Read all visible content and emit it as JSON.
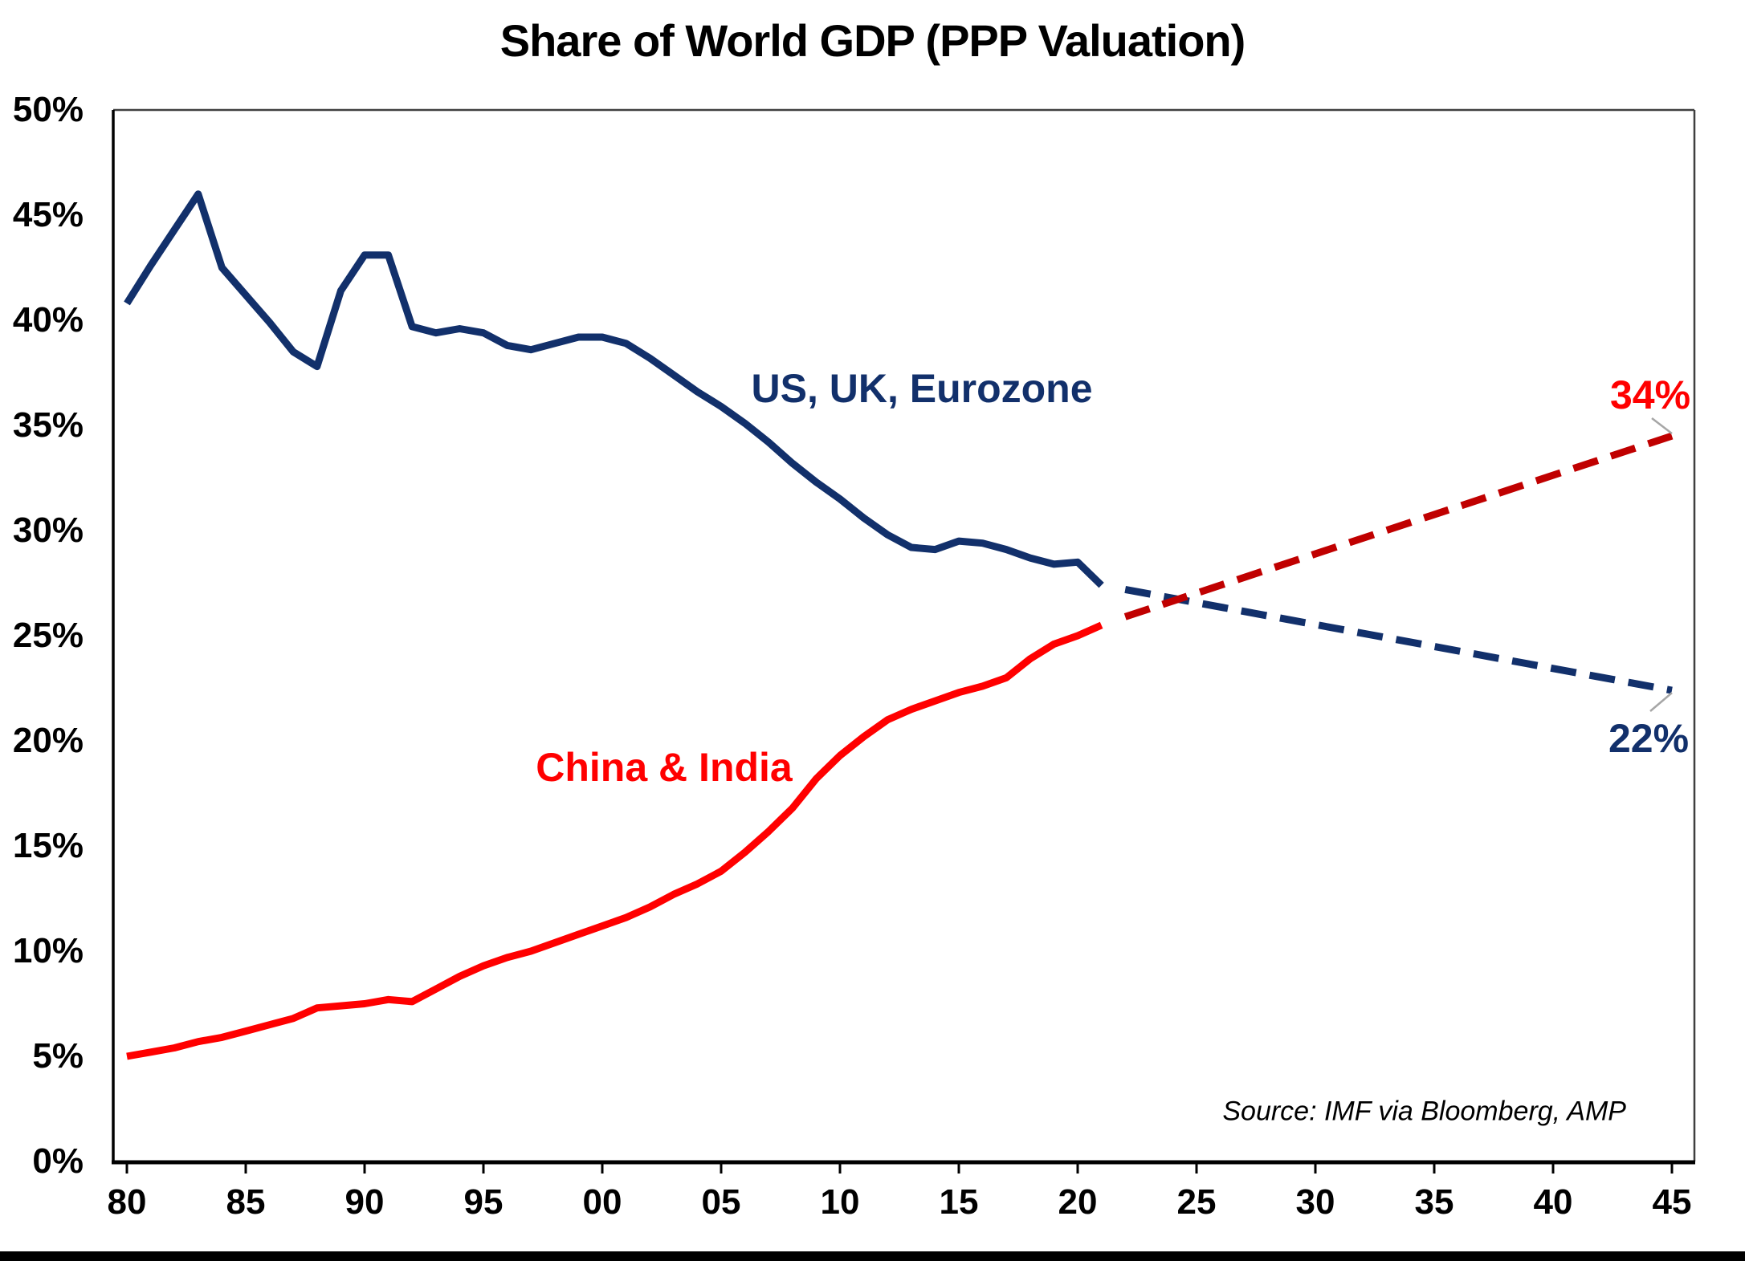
{
  "title": "Share of World GDP (PPP Valuation)",
  "source": "Source: IMF via Bloomberg, AMP",
  "colors": {
    "navy": "#12306b",
    "red": "#ff0000",
    "red_dark": "#c00000",
    "frame": "#3f3f3f",
    "axis": "#000000",
    "leader": "#a6a6a6"
  },
  "axes": {
    "x": {
      "ticks": [
        {
          "label": "80",
          "year": 1980
        },
        {
          "label": "85",
          "year": 1985
        },
        {
          "label": "90",
          "year": 1990
        },
        {
          "label": "95",
          "year": 1995
        },
        {
          "label": "00",
          "year": 2000
        },
        {
          "label": "05",
          "year": 2005
        },
        {
          "label": "10",
          "year": 2010
        },
        {
          "label": "15",
          "year": 2015
        },
        {
          "label": "20",
          "year": 2020
        },
        {
          "label": "25",
          "year": 2025
        },
        {
          "label": "30",
          "year": 2030
        },
        {
          "label": "35",
          "year": 2035
        },
        {
          "label": "40",
          "year": 2040
        },
        {
          "label": "45",
          "year": 2045
        }
      ]
    },
    "y": {
      "ticks": [
        {
          "label": "0%",
          "value": 0
        },
        {
          "label": "5%",
          "value": 5
        },
        {
          "label": "10%",
          "value": 10
        },
        {
          "label": "15%",
          "value": 15
        },
        {
          "label": "20%",
          "value": 20
        },
        {
          "label": "25%",
          "value": 25
        },
        {
          "label": "30%",
          "value": 30
        },
        {
          "label": "35%",
          "value": 35
        },
        {
          "label": "40%",
          "value": 40
        },
        {
          "label": "45%",
          "value": 45
        },
        {
          "label": "50%",
          "value": 50
        }
      ]
    }
  },
  "annotations": {
    "navy_series": {
      "text": "US, UK, Eurozone",
      "color": "navy"
    },
    "red_series": {
      "text": "China & India",
      "color": "red"
    },
    "red_end": {
      "text": "34%",
      "color": "red"
    },
    "navy_end": {
      "text": "22%",
      "color": "navy"
    }
  },
  "chart_data": {
    "type": "line",
    "title": "Share of World GDP (PPP Valuation)",
    "xlabel": "",
    "ylabel": "",
    "xlim": [
      1979.4,
      2046
    ],
    "ylim": [
      0,
      50
    ],
    "grid": false,
    "legend": "inline-labels",
    "series": [
      {
        "id": "line-us-uk-eurozone",
        "name": "US, UK, Eurozone",
        "color": "navy",
        "style": "solid",
        "points": [
          [
            1980,
            40.8
          ],
          [
            1981,
            42.6
          ],
          [
            1982,
            44.3
          ],
          [
            1983,
            46.0
          ],
          [
            1984,
            42.5
          ],
          [
            1985,
            41.2
          ],
          [
            1986,
            39.9
          ],
          [
            1987,
            38.5
          ],
          [
            1988,
            37.8
          ],
          [
            1989,
            41.4
          ],
          [
            1990,
            43.1
          ],
          [
            1991,
            43.1
          ],
          [
            1992,
            39.7
          ],
          [
            1993,
            39.4
          ],
          [
            1994,
            39.6
          ],
          [
            1995,
            39.4
          ],
          [
            1996,
            38.8
          ],
          [
            1997,
            38.6
          ],
          [
            1998,
            38.9
          ],
          [
            1999,
            39.2
          ],
          [
            2000,
            39.2
          ],
          [
            2001,
            38.9
          ],
          [
            2002,
            38.2
          ],
          [
            2003,
            37.4
          ],
          [
            2004,
            36.6
          ],
          [
            2005,
            35.9
          ],
          [
            2006,
            35.1
          ],
          [
            2007,
            34.2
          ],
          [
            2008,
            33.2
          ],
          [
            2009,
            32.3
          ],
          [
            2010,
            31.5
          ],
          [
            2011,
            30.6
          ],
          [
            2012,
            29.8
          ],
          [
            2013,
            29.2
          ],
          [
            2014,
            29.1
          ],
          [
            2015,
            29.5
          ],
          [
            2016,
            29.4
          ],
          [
            2017,
            29.1
          ],
          [
            2018,
            28.7
          ],
          [
            2019,
            28.4
          ],
          [
            2020,
            28.5
          ],
          [
            2021,
            27.4
          ]
        ]
      },
      {
        "id": "line-china-india",
        "name": "China & India",
        "color": "red",
        "style": "solid",
        "points": [
          [
            1980,
            5.0
          ],
          [
            1981,
            5.2
          ],
          [
            1982,
            5.4
          ],
          [
            1983,
            5.7
          ],
          [
            1984,
            5.9
          ],
          [
            1985,
            6.2
          ],
          [
            1986,
            6.5
          ],
          [
            1987,
            6.8
          ],
          [
            1988,
            7.3
          ],
          [
            1989,
            7.4
          ],
          [
            1990,
            7.5
          ],
          [
            1991,
            7.7
          ],
          [
            1992,
            7.6
          ],
          [
            1993,
            8.2
          ],
          [
            1994,
            8.8
          ],
          [
            1995,
            9.3
          ],
          [
            1996,
            9.7
          ],
          [
            1997,
            10.0
          ],
          [
            1998,
            10.4
          ],
          [
            1999,
            10.8
          ],
          [
            2000,
            11.2
          ],
          [
            2001,
            11.6
          ],
          [
            2002,
            12.1
          ],
          [
            2003,
            12.7
          ],
          [
            2004,
            13.2
          ],
          [
            2005,
            13.8
          ],
          [
            2006,
            14.7
          ],
          [
            2007,
            15.7
          ],
          [
            2008,
            16.8
          ],
          [
            2009,
            18.2
          ],
          [
            2010,
            19.3
          ],
          [
            2011,
            20.2
          ],
          [
            2012,
            21.0
          ],
          [
            2013,
            21.5
          ],
          [
            2014,
            21.9
          ],
          [
            2015,
            22.3
          ],
          [
            2016,
            22.6
          ],
          [
            2017,
            23.0
          ],
          [
            2018,
            23.9
          ],
          [
            2019,
            24.6
          ],
          [
            2020,
            25.0
          ],
          [
            2021,
            25.5
          ]
        ]
      },
      {
        "id": "line-us-uk-eurozone-projection",
        "name": "US, UK, Eurozone (projection)",
        "color": "navy",
        "style": "dashed",
        "points": [
          [
            2022,
            27.2
          ],
          [
            2045,
            22.4
          ]
        ]
      },
      {
        "id": "line-china-india-projection",
        "name": "China & India (projection)",
        "color": "red_dark",
        "style": "dashed",
        "points": [
          [
            2022,
            25.9
          ],
          [
            2045,
            34.5
          ]
        ]
      }
    ]
  }
}
